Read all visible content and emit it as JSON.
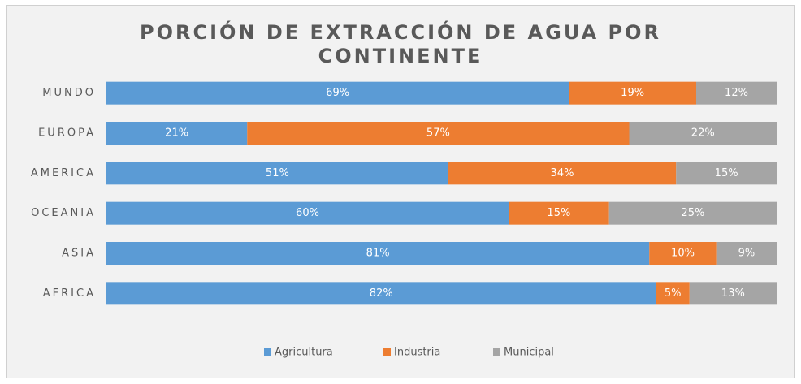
{
  "chart_data": {
    "type": "stacked_bar_horizontal",
    "title": "PORCIÓN DE EXTRACCIÓN DE AGUA POR CONTINENTE",
    "categories": [
      "MUNDO",
      "EUROPA",
      "AMERICA",
      "OCEANIA",
      "ASIA",
      "AFRICA"
    ],
    "series": [
      {
        "name": "Agricultura",
        "color": "#5b9bd5",
        "values": [
          69,
          21,
          51,
          60,
          81,
          82
        ],
        "value_labels": [
          "69%",
          "21%",
          "51%",
          "60%",
          "81%",
          "82%"
        ]
      },
      {
        "name": "Industria",
        "color": "#ed7d31",
        "values": [
          19,
          57,
          34,
          15,
          10,
          5
        ],
        "value_labels": [
          "19%",
          "57%",
          "34%",
          "15%",
          "10%",
          "5%"
        ]
      },
      {
        "name": "Municipal",
        "color": "#a5a5a5",
        "values": [
          12,
          22,
          15,
          25,
          9,
          13
        ],
        "value_labels": [
          "12%",
          "22%",
          "15%",
          "25%",
          "9%",
          "13%"
        ]
      }
    ],
    "legend": "bottom"
  }
}
